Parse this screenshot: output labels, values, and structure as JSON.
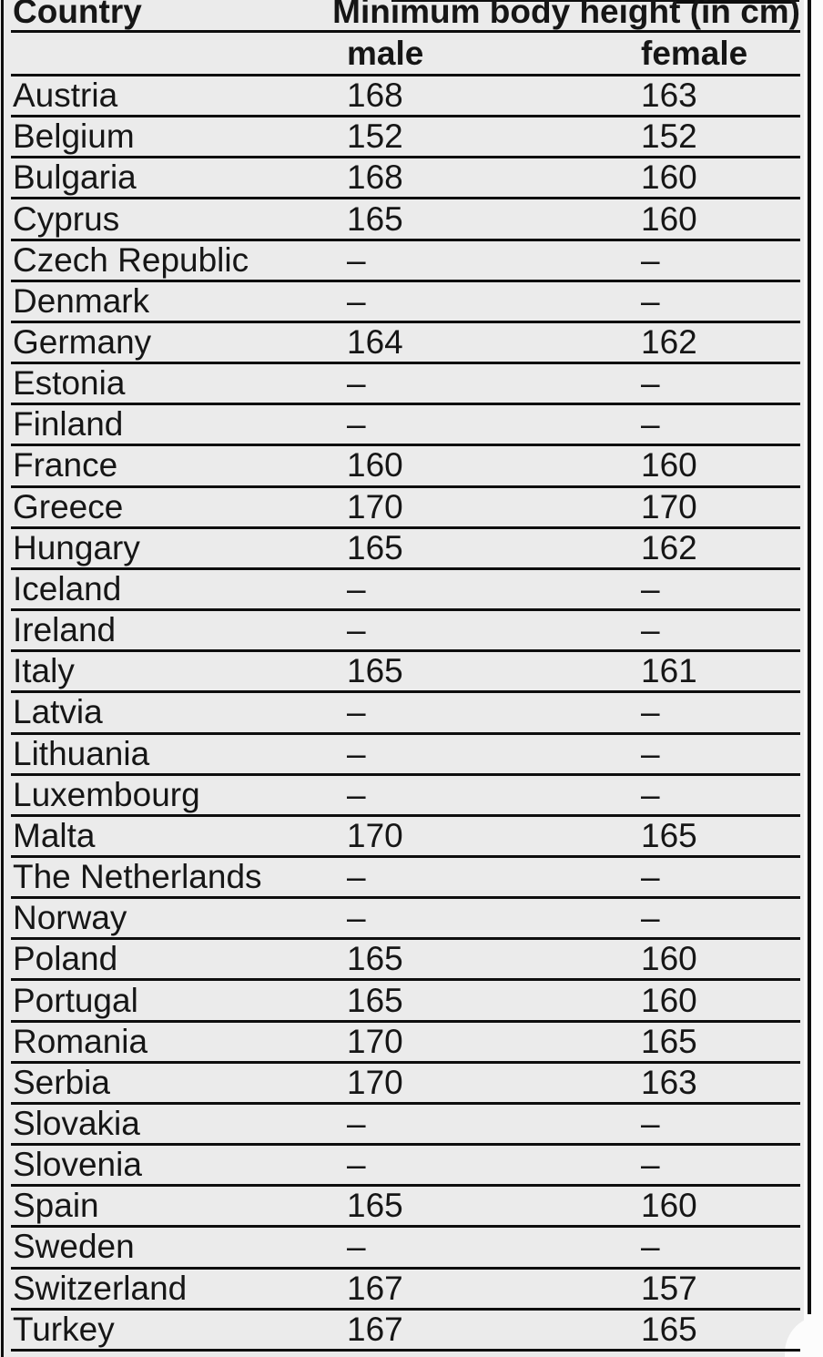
{
  "table": {
    "header": {
      "country": "Country",
      "group": "Minimum body height (in cm)",
      "male": "male",
      "female": "female"
    },
    "rows": [
      {
        "country": "Austria",
        "male": "168",
        "female": "163"
      },
      {
        "country": "Belgium",
        "male": "152",
        "female": "152"
      },
      {
        "country": "Bulgaria",
        "male": "168",
        "female": "160"
      },
      {
        "country": "Cyprus",
        "male": "165",
        "female": "160"
      },
      {
        "country": "Czech Republic",
        "male": "–",
        "female": "–"
      },
      {
        "country": "Denmark",
        "male": "–",
        "female": "–"
      },
      {
        "country": "Germany",
        "male": "164",
        "female": "162"
      },
      {
        "country": "Estonia",
        "male": "–",
        "female": "–"
      },
      {
        "country": "Finland",
        "male": "–",
        "female": "–"
      },
      {
        "country": "France",
        "male": "160",
        "female": "160"
      },
      {
        "country": "Greece",
        "male": "170",
        "female": "170"
      },
      {
        "country": "Hungary",
        "male": "165",
        "female": "162"
      },
      {
        "country": "Iceland",
        "male": "–",
        "female": "–"
      },
      {
        "country": "Ireland",
        "male": "–",
        "female": "–"
      },
      {
        "country": "Italy",
        "male": "165",
        "female": "161"
      },
      {
        "country": "Latvia",
        "male": "–",
        "female": "–"
      },
      {
        "country": "Lithuania",
        "male": "–",
        "female": "–"
      },
      {
        "country": "Luxembourg",
        "male": "–",
        "female": "–"
      },
      {
        "country": "Malta",
        "male": "170",
        "female": "165"
      },
      {
        "country": "The Netherlands",
        "male": "–",
        "female": "–"
      },
      {
        "country": "Norway",
        "male": "–",
        "female": "–"
      },
      {
        "country": "Poland",
        "male": "165",
        "female": "160"
      },
      {
        "country": "Portugal",
        "male": "165",
        "female": "160"
      },
      {
        "country": "Romania",
        "male": "170",
        "female": "165"
      },
      {
        "country": "Serbia",
        "male": "170",
        "female": "163"
      },
      {
        "country": "Slovakia",
        "male": "–",
        "female": "–"
      },
      {
        "country": "Slovenia",
        "male": "–",
        "female": "–"
      },
      {
        "country": "Spain",
        "male": "165",
        "female": "160"
      },
      {
        "country": "Sweden",
        "male": "–",
        "female": "–"
      },
      {
        "country": "Switzerland",
        "male": "167",
        "female": "157"
      },
      {
        "country": "Turkey",
        "male": "167",
        "female": "165"
      }
    ]
  },
  "chart_data": {
    "type": "table",
    "title": "Minimum body height (in cm)",
    "columns": [
      "Country",
      "male",
      "female"
    ],
    "missing_value_symbol": "–"
  },
  "colors": {
    "page_background": "#ebebeb",
    "text": "#161616",
    "rule": "#0e0e0e",
    "margin_white": "#fcfcfc"
  }
}
